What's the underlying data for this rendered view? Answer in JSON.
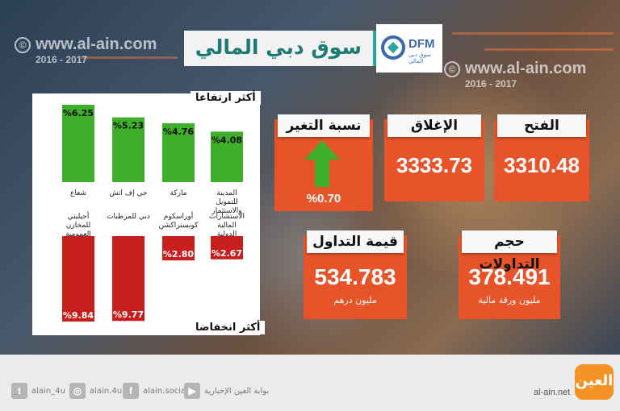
{
  "header": {
    "title": "سوق دبي المالي",
    "logo_text": "DFM",
    "logo_sub": "سوق دبي المالي"
  },
  "watermark": {
    "site": "www.al-ain.com",
    "years": "2016 - 2017",
    "symbol": "©"
  },
  "kpis": {
    "open": {
      "label": "الفتح",
      "value": "3310.48"
    },
    "close": {
      "label": "الإغلاق",
      "value": "3333.73"
    },
    "change": {
      "label": "نسبة التغير",
      "value": "%0.70"
    },
    "volume": {
      "label": "حجم التداولات",
      "value": "378.491",
      "unit": "مليون ورقة مالية"
    },
    "turnover": {
      "label": "قيمة التداول",
      "value": "534.783",
      "unit": "مليون درهم"
    }
  },
  "colors": {
    "gain": "#3fae2a",
    "loss": "#c81e1e",
    "card": "#e8542a",
    "accent": "#2ba5a0"
  },
  "chart_data": [
    {
      "type": "bar",
      "title": "أكثر ارتفاعا",
      "categories": [
        "شعاع",
        "جي إف اتش",
        "ماركة",
        "المدينة للتمويل والاستثمار"
      ],
      "values": [
        6.25,
        5.23,
        4.76,
        4.08
      ],
      "labels": [
        "%6.25",
        "%5.23",
        "%4.76",
        "%4.08"
      ],
      "ylim": [
        0,
        6.25
      ],
      "grid": false
    },
    {
      "type": "bar",
      "title": "أكثر انخفاضا",
      "categories": [
        "أجيليتي للمخازن العمومية",
        "دبي للمرطبات",
        "أوراسكوم كونستراكشن",
        "الاستشارات المالية الدولية"
      ],
      "values": [
        -9.84,
        -9.77,
        -2.8,
        -2.67
      ],
      "labels": [
        "%9.84",
        "%9.77",
        "%2.80",
        "%2.67"
      ],
      "ylim": [
        -9.84,
        0
      ],
      "grid": false
    }
  ],
  "footer": {
    "twitter": "alain_4u",
    "instagram": "alain.4u",
    "facebook": "alain.social",
    "youtube": "بوابة العين الإخبارية",
    "site": "al-ain.net",
    "brand": "العين"
  }
}
